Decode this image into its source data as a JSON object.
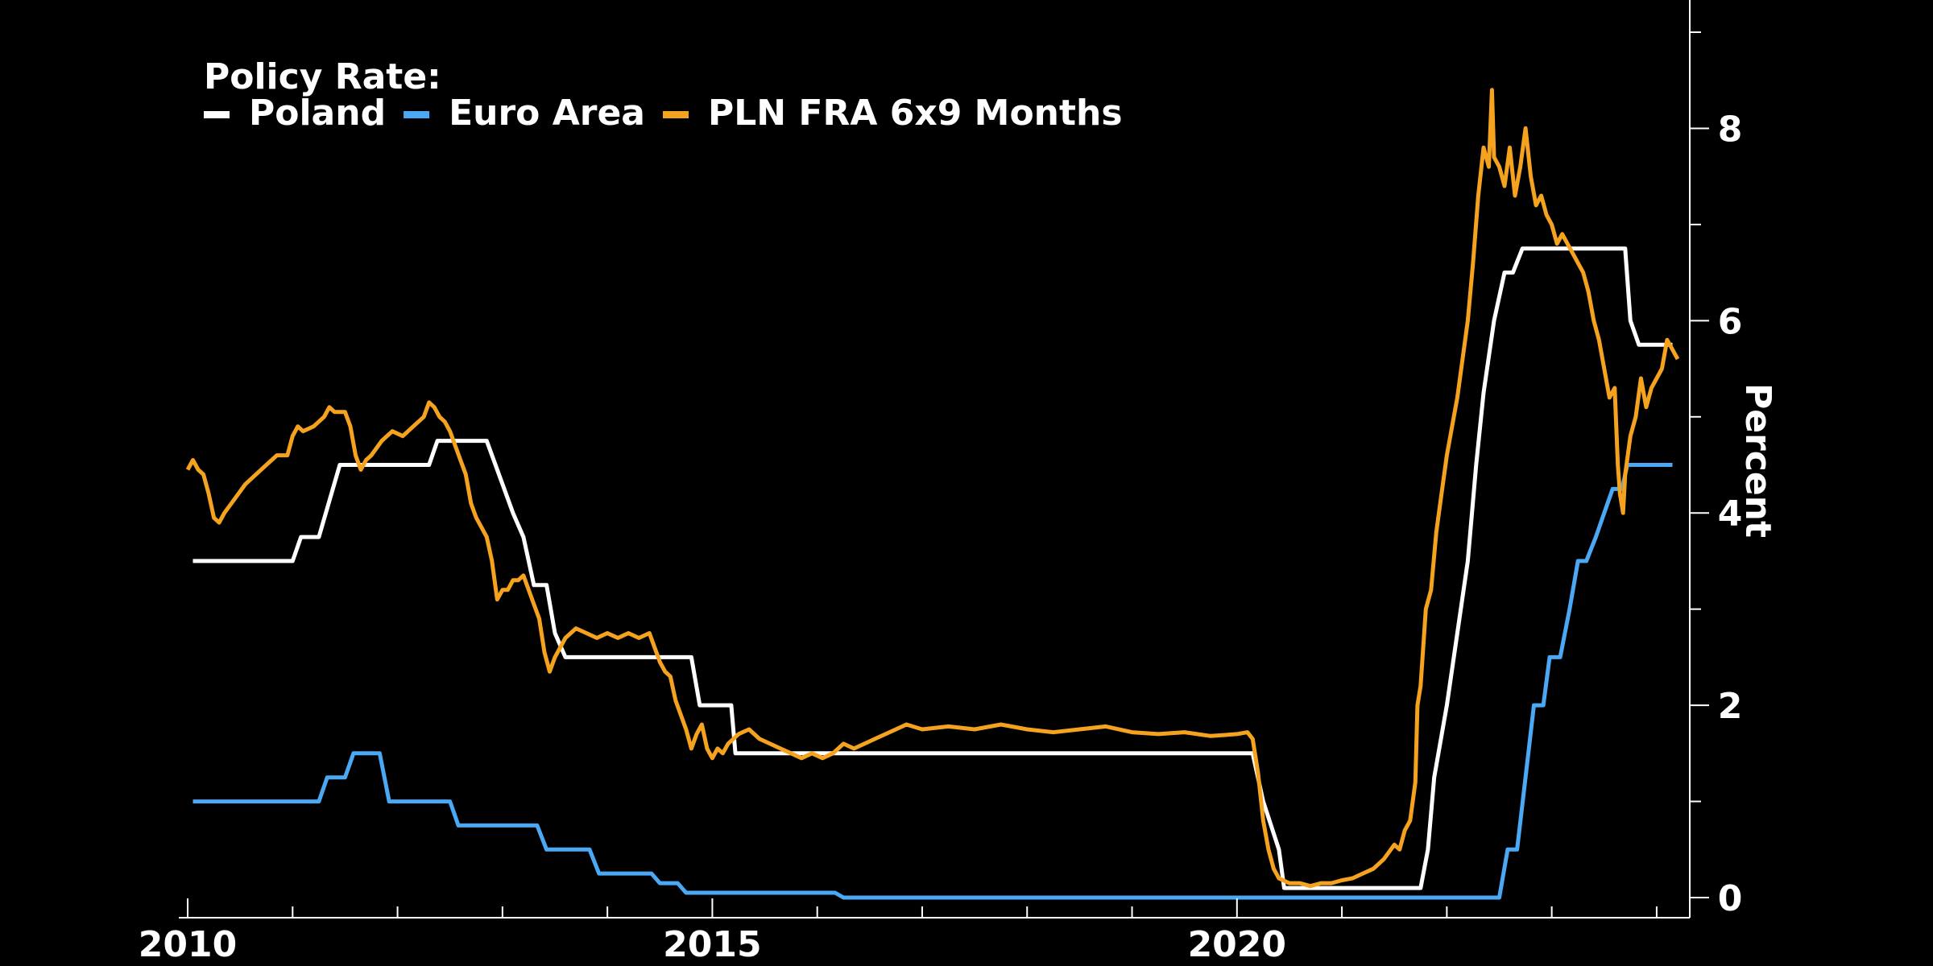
{
  "chart_data": {
    "type": "line",
    "legend_title": "Policy Rate:",
    "legend_position": "top-left",
    "ylabel": "Percent",
    "ylim": [
      0,
      9
    ],
    "xlim": [
      2009.9,
      2024.3
    ],
    "y_axis_side": "right",
    "grid": false,
    "x_ticks": [
      2010,
      2015,
      2020
    ],
    "x_tick_labels": [
      "2010",
      "2015",
      "2020"
    ],
    "y_ticks": [
      0,
      2,
      4,
      6,
      8
    ],
    "y_tick_labels": [
      "0",
      "2",
      "4",
      "6",
      "8"
    ],
    "series": [
      {
        "name": "Poland",
        "color": "#ffffff",
        "points": [
          [
            2010.05,
            3.5
          ],
          [
            2011.0,
            3.5
          ],
          [
            2011.08,
            3.75
          ],
          [
            2011.25,
            3.75
          ],
          [
            2011.45,
            4.5
          ],
          [
            2012.3,
            4.5
          ],
          [
            2012.38,
            4.75
          ],
          [
            2012.85,
            4.75
          ],
          [
            2013.1,
            4.0
          ],
          [
            2013.2,
            3.75
          ],
          [
            2013.3,
            3.25
          ],
          [
            2013.42,
            3.25
          ],
          [
            2013.5,
            2.75
          ],
          [
            2013.6,
            2.5
          ],
          [
            2014.8,
            2.5
          ],
          [
            2014.88,
            2.0
          ],
          [
            2015.18,
            2.0
          ],
          [
            2015.22,
            1.5
          ],
          [
            2020.15,
            1.5
          ],
          [
            2020.25,
            1.0
          ],
          [
            2020.4,
            0.5
          ],
          [
            2020.45,
            0.1
          ],
          [
            2021.75,
            0.1
          ],
          [
            2021.82,
            0.5
          ],
          [
            2021.88,
            1.25
          ],
          [
            2022.0,
            2.0
          ],
          [
            2022.1,
            2.75
          ],
          [
            2022.2,
            3.5
          ],
          [
            2022.28,
            4.5
          ],
          [
            2022.35,
            5.25
          ],
          [
            2022.45,
            6.0
          ],
          [
            2022.55,
            6.5
          ],
          [
            2022.63,
            6.5
          ],
          [
            2022.72,
            6.75
          ],
          [
            2023.7,
            6.75
          ],
          [
            2023.75,
            6.0
          ],
          [
            2023.83,
            5.75
          ],
          [
            2024.15,
            5.75
          ]
        ]
      },
      {
        "name": "Euro Area",
        "color": "#4aa8f4",
        "points": [
          [
            2010.05,
            1.0
          ],
          [
            2011.25,
            1.0
          ],
          [
            2011.33,
            1.25
          ],
          [
            2011.5,
            1.25
          ],
          [
            2011.58,
            1.5
          ],
          [
            2011.83,
            1.5
          ],
          [
            2011.92,
            1.0
          ],
          [
            2012.5,
            1.0
          ],
          [
            2012.58,
            0.75
          ],
          [
            2013.33,
            0.75
          ],
          [
            2013.42,
            0.5
          ],
          [
            2013.83,
            0.5
          ],
          [
            2013.92,
            0.25
          ],
          [
            2014.42,
            0.25
          ],
          [
            2014.5,
            0.15
          ],
          [
            2014.67,
            0.15
          ],
          [
            2014.75,
            0.05
          ],
          [
            2016.17,
            0.05
          ],
          [
            2016.25,
            0.0
          ],
          [
            2022.5,
            0.0
          ],
          [
            2022.58,
            0.5
          ],
          [
            2022.67,
            0.5
          ],
          [
            2022.75,
            1.25
          ],
          [
            2022.83,
            2.0
          ],
          [
            2022.92,
            2.0
          ],
          [
            2022.98,
            2.5
          ],
          [
            2023.08,
            2.5
          ],
          [
            2023.17,
            3.0
          ],
          [
            2023.25,
            3.5
          ],
          [
            2023.33,
            3.5
          ],
          [
            2023.42,
            3.75
          ],
          [
            2023.5,
            4.0
          ],
          [
            2023.58,
            4.25
          ],
          [
            2023.67,
            4.25
          ],
          [
            2023.72,
            4.5
          ],
          [
            2024.15,
            4.5
          ]
        ]
      },
      {
        "name": "PLN FRA 6x9 Months",
        "color": "#f5a21f",
        "points": [
          [
            2010.0,
            4.45
          ],
          [
            2010.05,
            4.55
          ],
          [
            2010.1,
            4.45
          ],
          [
            2010.15,
            4.4
          ],
          [
            2010.2,
            4.2
          ],
          [
            2010.25,
            3.95
          ],
          [
            2010.3,
            3.9
          ],
          [
            2010.35,
            4.0
          ],
          [
            2010.45,
            4.15
          ],
          [
            2010.55,
            4.3
          ],
          [
            2010.65,
            4.4
          ],
          [
            2010.75,
            4.5
          ],
          [
            2010.85,
            4.6
          ],
          [
            2010.95,
            4.6
          ],
          [
            2011.0,
            4.8
          ],
          [
            2011.05,
            4.9
          ],
          [
            2011.1,
            4.85
          ],
          [
            2011.2,
            4.9
          ],
          [
            2011.3,
            5.0
          ],
          [
            2011.35,
            5.1
          ],
          [
            2011.4,
            5.05
          ],
          [
            2011.5,
            5.05
          ],
          [
            2011.55,
            4.9
          ],
          [
            2011.6,
            4.6
          ],
          [
            2011.65,
            4.45
          ],
          [
            2011.7,
            4.55
          ],
          [
            2011.75,
            4.6
          ],
          [
            2011.85,
            4.75
          ],
          [
            2011.95,
            4.85
          ],
          [
            2012.05,
            4.8
          ],
          [
            2012.15,
            4.9
          ],
          [
            2012.2,
            4.95
          ],
          [
            2012.25,
            5.0
          ],
          [
            2012.3,
            5.15
          ],
          [
            2012.35,
            5.1
          ],
          [
            2012.4,
            5.0
          ],
          [
            2012.45,
            4.95
          ],
          [
            2012.5,
            4.85
          ],
          [
            2012.55,
            4.7
          ],
          [
            2012.6,
            4.55
          ],
          [
            2012.65,
            4.4
          ],
          [
            2012.7,
            4.1
          ],
          [
            2012.75,
            3.95
          ],
          [
            2012.8,
            3.85
          ],
          [
            2012.85,
            3.75
          ],
          [
            2012.9,
            3.5
          ],
          [
            2012.95,
            3.1
          ],
          [
            2013.0,
            3.2
          ],
          [
            2013.05,
            3.2
          ],
          [
            2013.1,
            3.3
          ],
          [
            2013.15,
            3.3
          ],
          [
            2013.2,
            3.35
          ],
          [
            2013.3,
            3.05
          ],
          [
            2013.35,
            2.9
          ],
          [
            2013.4,
            2.55
          ],
          [
            2013.45,
            2.35
          ],
          [
            2013.5,
            2.5
          ],
          [
            2013.6,
            2.7
          ],
          [
            2013.7,
            2.8
          ],
          [
            2013.8,
            2.75
          ],
          [
            2013.9,
            2.7
          ],
          [
            2014.0,
            2.75
          ],
          [
            2014.1,
            2.7
          ],
          [
            2014.2,
            2.75
          ],
          [
            2014.3,
            2.7
          ],
          [
            2014.4,
            2.75
          ],
          [
            2014.45,
            2.6
          ],
          [
            2014.5,
            2.45
          ],
          [
            2014.55,
            2.35
          ],
          [
            2014.6,
            2.3
          ],
          [
            2014.65,
            2.05
          ],
          [
            2014.7,
            1.9
          ],
          [
            2014.75,
            1.75
          ],
          [
            2014.8,
            1.55
          ],
          [
            2014.85,
            1.7
          ],
          [
            2014.9,
            1.8
          ],
          [
            2014.95,
            1.55
          ],
          [
            2015.0,
            1.45
          ],
          [
            2015.05,
            1.55
          ],
          [
            2015.1,
            1.5
          ],
          [
            2015.15,
            1.6
          ],
          [
            2015.25,
            1.7
          ],
          [
            2015.35,
            1.75
          ],
          [
            2015.45,
            1.65
          ],
          [
            2015.55,
            1.6
          ],
          [
            2015.65,
            1.55
          ],
          [
            2015.75,
            1.5
          ],
          [
            2015.85,
            1.45
          ],
          [
            2015.95,
            1.5
          ],
          [
            2016.05,
            1.45
          ],
          [
            2016.15,
            1.5
          ],
          [
            2016.25,
            1.6
          ],
          [
            2016.35,
            1.55
          ],
          [
            2016.45,
            1.6
          ],
          [
            2016.55,
            1.65
          ],
          [
            2016.65,
            1.7
          ],
          [
            2016.75,
            1.75
          ],
          [
            2016.85,
            1.8
          ],
          [
            2017.0,
            1.75
          ],
          [
            2017.25,
            1.78
          ],
          [
            2017.5,
            1.75
          ],
          [
            2017.75,
            1.8
          ],
          [
            2018.0,
            1.75
          ],
          [
            2018.25,
            1.72
          ],
          [
            2018.5,
            1.75
          ],
          [
            2018.75,
            1.78
          ],
          [
            2019.0,
            1.72
          ],
          [
            2019.25,
            1.7
          ],
          [
            2019.5,
            1.72
          ],
          [
            2019.75,
            1.68
          ],
          [
            2020.0,
            1.7
          ],
          [
            2020.1,
            1.72
          ],
          [
            2020.15,
            1.65
          ],
          [
            2020.2,
            1.3
          ],
          [
            2020.25,
            0.8
          ],
          [
            2020.3,
            0.5
          ],
          [
            2020.35,
            0.3
          ],
          [
            2020.4,
            0.2
          ],
          [
            2020.5,
            0.15
          ],
          [
            2020.6,
            0.15
          ],
          [
            2020.7,
            0.12
          ],
          [
            2020.8,
            0.15
          ],
          [
            2020.9,
            0.15
          ],
          [
            2021.0,
            0.18
          ],
          [
            2021.1,
            0.2
          ],
          [
            2021.2,
            0.25
          ],
          [
            2021.3,
            0.3
          ],
          [
            2021.4,
            0.4
          ],
          [
            2021.5,
            0.55
          ],
          [
            2021.55,
            0.5
          ],
          [
            2021.6,
            0.7
          ],
          [
            2021.65,
            0.8
          ],
          [
            2021.7,
            1.2
          ],
          [
            2021.72,
            2.0
          ],
          [
            2021.75,
            2.2
          ],
          [
            2021.8,
            3.0
          ],
          [
            2021.85,
            3.2
          ],
          [
            2021.9,
            3.8
          ],
          [
            2021.95,
            4.2
          ],
          [
            2022.0,
            4.6
          ],
          [
            2022.05,
            4.9
          ],
          [
            2022.1,
            5.2
          ],
          [
            2022.15,
            5.6
          ],
          [
            2022.2,
            6.0
          ],
          [
            2022.25,
            6.6
          ],
          [
            2022.3,
            7.3
          ],
          [
            2022.35,
            7.8
          ],
          [
            2022.4,
            7.6
          ],
          [
            2022.43,
            8.4
          ],
          [
            2022.45,
            7.7
          ],
          [
            2022.5,
            7.6
          ],
          [
            2022.55,
            7.4
          ],
          [
            2022.6,
            7.8
          ],
          [
            2022.65,
            7.3
          ],
          [
            2022.7,
            7.6
          ],
          [
            2022.75,
            8.0
          ],
          [
            2022.8,
            7.5
          ],
          [
            2022.85,
            7.2
          ],
          [
            2022.9,
            7.3
          ],
          [
            2022.95,
            7.1
          ],
          [
            2023.0,
            7.0
          ],
          [
            2023.05,
            6.8
          ],
          [
            2023.1,
            6.9
          ],
          [
            2023.15,
            6.8
          ],
          [
            2023.2,
            6.7
          ],
          [
            2023.25,
            6.6
          ],
          [
            2023.3,
            6.5
          ],
          [
            2023.35,
            6.3
          ],
          [
            2023.4,
            6.0
          ],
          [
            2023.45,
            5.8
          ],
          [
            2023.5,
            5.5
          ],
          [
            2023.55,
            5.2
          ],
          [
            2023.6,
            5.3
          ],
          [
            2023.63,
            4.5
          ],
          [
            2023.65,
            4.2
          ],
          [
            2023.68,
            4.0
          ],
          [
            2023.7,
            4.4
          ],
          [
            2023.75,
            4.8
          ],
          [
            2023.8,
            5.0
          ],
          [
            2023.85,
            5.4
          ],
          [
            2023.9,
            5.1
          ],
          [
            2023.95,
            5.3
          ],
          [
            2024.0,
            5.4
          ],
          [
            2024.05,
            5.5
          ],
          [
            2024.1,
            5.8
          ],
          [
            2024.15,
            5.7
          ],
          [
            2024.2,
            5.6
          ]
        ]
      }
    ]
  }
}
